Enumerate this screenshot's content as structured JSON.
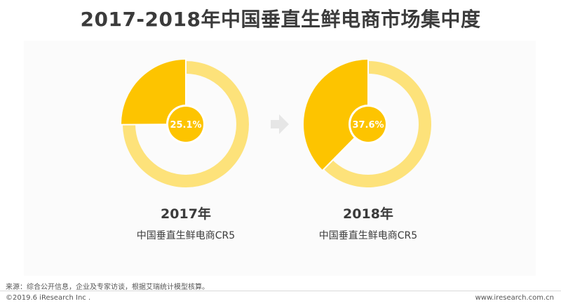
{
  "title": "2017-2018年中国垂直生鲜电商市场集中度",
  "colors": {
    "highlight": "#fdc400",
    "ring": "#fde27a",
    "center": "#fdc400",
    "arrow": "#e6e6e6",
    "center_text": "#ffffff"
  },
  "chart_data": {
    "type": "pie",
    "charts": [
      {
        "year_label": "2017年",
        "subtitle": "中国垂直生鲜电商CR5",
        "value": 25.1,
        "value_label": "25.1%"
      },
      {
        "year_label": "2018年",
        "subtitle": "中国垂直生鲜电商CR5",
        "value": 37.6,
        "value_label": "37.6%"
      }
    ]
  },
  "footer": {
    "source": "来源：综合公开信息，企业及专家访谈，根据艾瑞统计模型核算。",
    "copyright": "©2019.6 iResearch Inc .",
    "site": "www.iresearch.com.cn"
  }
}
